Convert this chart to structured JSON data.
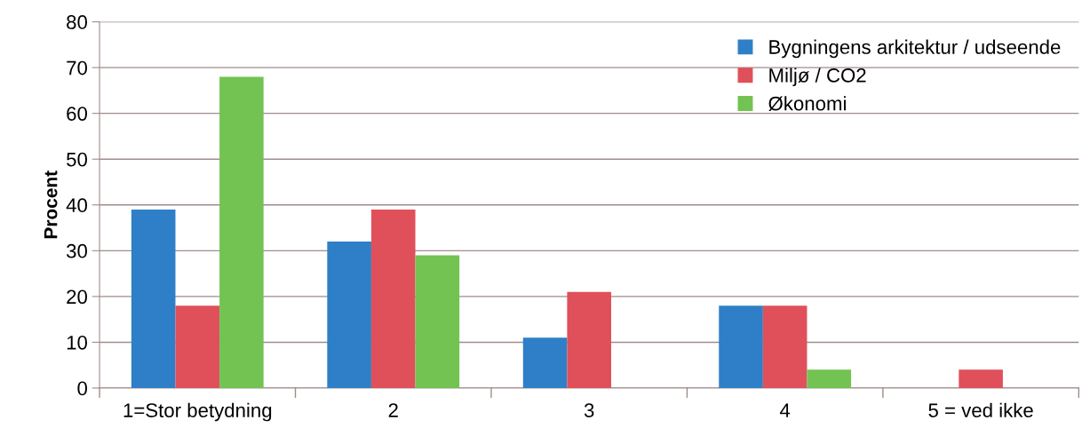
{
  "chart_data": {
    "type": "bar",
    "ylabel": "Procent",
    "categories": [
      "1=Stor betydning",
      "2",
      "3",
      "4",
      "5 = ved ikke"
    ],
    "series": [
      {
        "name": "Bygningens arkitektur / udseende",
        "color": "#2e7fc8",
        "values": [
          39,
          32,
          11,
          18,
          0
        ]
      },
      {
        "name": "Miljø / CO2",
        "color": "#e0505a",
        "values": [
          18,
          39,
          21,
          18,
          4
        ]
      },
      {
        "name": "Økonomi",
        "color": "#72c352",
        "values": [
          68,
          29,
          0,
          4,
          0
        ]
      }
    ],
    "ylim": [
      0,
      80
    ],
    "yticks": [
      0,
      10,
      20,
      30,
      40,
      50,
      60,
      70,
      80
    ],
    "grid": "y",
    "legend": "top right"
  }
}
